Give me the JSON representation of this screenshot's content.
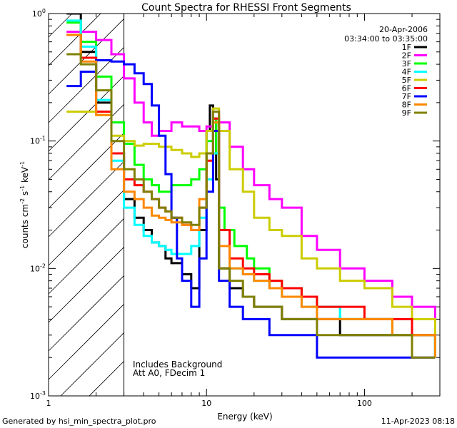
{
  "chart_data": {
    "type": "line",
    "title": "Count Spectra for RHESSI Front Segments",
    "xlabel": "Energy (keV)",
    "ylabel_parts": [
      "counts cm",
      "-2",
      " s",
      "-1",
      " keV",
      "-1"
    ],
    "xscale": "log",
    "yscale": "log",
    "xlim": [
      1,
      300
    ],
    "ylim": [
      0.001,
      1
    ],
    "xticks": [
      {
        "v": 1,
        "label": "1"
      },
      {
        "v": 10,
        "label": "10"
      },
      {
        "v": 100,
        "label": "100"
      }
    ],
    "yticks": [
      {
        "v": 0.001,
        "base": "10",
        "exp": "-3"
      },
      {
        "v": 0.01,
        "base": "10",
        "exp": "-2"
      },
      {
        "v": 0.1,
        "base": "10",
        "exp": "-1"
      },
      {
        "v": 1,
        "base": "10",
        "exp": "0"
      }
    ],
    "shaded_region_xlim": [
      1,
      3
    ],
    "date": "20-Apr-2006",
    "time_range": "03:34:00 to 03:35:00",
    "annotations": [
      "Includes Background",
      "Att A0, FDecim 1"
    ],
    "series": [
      {
        "name": "1F",
        "color": "#000000",
        "x": [
          1.3,
          1.6,
          2.0,
          2.5,
          3.0,
          3.5,
          4.0,
          4.5,
          5.0,
          5.5,
          6.0,
          7.0,
          8.0,
          9.0,
          10.0,
          10.5,
          11.0,
          11.5,
          12.0,
          14.0,
          17.0,
          20.0,
          25.0,
          30.0,
          40.0,
          50.0,
          70.0,
          100.0,
          150.0,
          200.0,
          280.0
        ],
        "y": [
          1.0,
          0.5,
          0.2,
          0.08,
          0.035,
          0.025,
          0.02,
          0.016,
          0.015,
          0.012,
          0.011,
          0.009,
          0.007,
          0.02,
          0.12,
          0.19,
          0.15,
          0.05,
          0.01,
          0.007,
          0.006,
          0.005,
          0.005,
          0.004,
          0.004,
          0.004,
          0.003,
          0.003,
          0.003,
          0.003,
          0.002
        ]
      },
      {
        "name": "2F",
        "color": "#ff00ff",
        "x": [
          1.3,
          1.6,
          2.0,
          2.5,
          3.0,
          3.5,
          4.0,
          4.5,
          5.0,
          6.0,
          7.0,
          8.0,
          9.0,
          10.0,
          11.0,
          12.0,
          14.0,
          17.0,
          20.0,
          25.0,
          30.0,
          40.0,
          50.0,
          70.0,
          100.0,
          150.0,
          200.0,
          280.0
        ],
        "y": [
          0.72,
          0.72,
          0.62,
          0.48,
          0.31,
          0.2,
          0.14,
          0.11,
          0.12,
          0.14,
          0.13,
          0.13,
          0.12,
          0.13,
          0.17,
          0.14,
          0.09,
          0.06,
          0.045,
          0.035,
          0.03,
          0.018,
          0.014,
          0.01,
          0.008,
          0.006,
          0.005,
          0.004
        ]
      },
      {
        "name": "3F",
        "color": "#00ff00",
        "x": [
          1.3,
          1.6,
          2.0,
          2.5,
          3.0,
          3.5,
          4.0,
          4.5,
          5.0,
          5.5,
          6.0,
          7.0,
          8.0,
          9.0,
          10.0,
          11.0,
          11.5,
          12.0,
          13.0,
          15.0,
          18.0,
          20.0,
          25.0,
          30.0,
          40.0,
          50.0,
          70.0,
          100.0,
          150.0,
          200.0,
          280.0
        ],
        "y": [
          0.85,
          0.6,
          0.32,
          0.14,
          0.095,
          0.065,
          0.05,
          0.045,
          0.04,
          0.04,
          0.045,
          0.045,
          0.05,
          0.06,
          0.1,
          0.15,
          0.08,
          0.03,
          0.02,
          0.015,
          0.012,
          0.01,
          0.008,
          0.007,
          0.006,
          0.005,
          0.004,
          0.004,
          0.003,
          0.003,
          0.002
        ]
      },
      {
        "name": "4F",
        "color": "#00ffff",
        "x": [
          1.3,
          1.6,
          2.0,
          2.5,
          3.0,
          3.5,
          4.0,
          4.5,
          5.0,
          5.5,
          6.0,
          7.0,
          8.0,
          9.0,
          10.0,
          11.0,
          12.0,
          14.0,
          17.0,
          20.0,
          25.0,
          30.0,
          40.0,
          50.0,
          70.0,
          100.0,
          150.0,
          200.0,
          280.0
        ],
        "y": [
          0.88,
          0.55,
          0.21,
          0.07,
          0.03,
          0.022,
          0.018,
          0.016,
          0.015,
          0.014,
          0.013,
          0.013,
          0.015,
          0.025,
          0.05,
          0.08,
          0.02,
          0.01,
          0.009,
          0.008,
          0.007,
          0.006,
          0.005,
          0.005,
          0.004,
          0.004,
          0.003,
          0.003,
          0.002
        ]
      },
      {
        "name": "5F",
        "color": "#cccc00",
        "x": [
          1.3,
          1.6,
          2.0,
          2.5,
          3.0,
          3.5,
          4.0,
          5.0,
          6.0,
          7.0,
          8.0,
          9.0,
          10.0,
          11.0,
          12.0,
          14.0,
          17.0,
          20.0,
          25.0,
          30.0,
          40.0,
          50.0,
          70.0,
          100.0,
          150.0,
          200.0,
          280.0
        ],
        "y": [
          0.17,
          0.17,
          0.16,
          0.11,
          0.1,
          0.092,
          0.095,
          0.09,
          0.085,
          0.08,
          0.075,
          0.08,
          0.12,
          0.18,
          0.12,
          0.06,
          0.04,
          0.025,
          0.02,
          0.018,
          0.012,
          0.01,
          0.008,
          0.007,
          0.005,
          0.004,
          0.003
        ]
      },
      {
        "name": "6F",
        "color": "#ff0000",
        "x": [
          1.3,
          1.6,
          2.0,
          2.5,
          3.0,
          3.5,
          4.0,
          4.5,
          5.0,
          5.5,
          6.0,
          7.0,
          8.0,
          9.0,
          10.0,
          11.0,
          12.0,
          14.0,
          17.0,
          20.0,
          25.0,
          30.0,
          40.0,
          50.0,
          70.0,
          100.0,
          150.0,
          200.0,
          280.0
        ],
        "y": [
          0.68,
          0.45,
          0.17,
          0.08,
          0.05,
          0.045,
          0.04,
          0.035,
          0.03,
          0.028,
          0.025,
          0.022,
          0.02,
          0.03,
          0.07,
          0.15,
          0.02,
          0.012,
          0.01,
          0.009,
          0.008,
          0.007,
          0.006,
          0.005,
          0.005,
          0.004,
          0.004,
          0.003,
          0.003
        ]
      },
      {
        "name": "7F",
        "color": "#0000ff",
        "x": [
          1.3,
          1.6,
          2.0,
          2.5,
          3.0,
          3.5,
          4.0,
          4.5,
          5.0,
          5.5,
          6.0,
          6.5,
          7.0,
          8.0,
          9.0,
          10.0,
          11.0,
          12.0,
          14.0,
          17.0,
          20.0,
          25.0,
          30.0,
          40.0,
          50.0,
          70.0,
          100.0,
          150.0,
          200.0,
          280.0
        ],
        "y": [
          0.27,
          0.35,
          0.43,
          0.42,
          0.4,
          0.34,
          0.28,
          0.19,
          0.11,
          0.055,
          0.025,
          0.012,
          0.008,
          0.005,
          0.012,
          0.04,
          0.12,
          0.008,
          0.005,
          0.004,
          0.004,
          0.003,
          0.003,
          0.003,
          0.002,
          0.002,
          0.002,
          0.002,
          0.002,
          0.002
        ]
      },
      {
        "name": "8F",
        "color": "#ff8800",
        "x": [
          1.3,
          1.6,
          2.0,
          2.5,
          3.0,
          3.5,
          4.0,
          4.5,
          5.0,
          5.5,
          6.0,
          7.0,
          8.0,
          9.0,
          10.0,
          11.0,
          12.0,
          14.0,
          17.0,
          20.0,
          25.0,
          30.0,
          40.0,
          50.0,
          70.0,
          100.0,
          150.0,
          200.0,
          280.0
        ],
        "y": [
          0.68,
          0.42,
          0.16,
          0.06,
          0.04,
          0.035,
          0.03,
          0.026,
          0.025,
          0.024,
          0.023,
          0.022,
          0.02,
          0.035,
          0.08,
          0.14,
          0.015,
          0.01,
          0.009,
          0.008,
          0.007,
          0.006,
          0.005,
          0.004,
          0.004,
          0.004,
          0.003,
          0.003,
          0.002
        ]
      },
      {
        "name": "9F",
        "color": "#808000",
        "x": [
          1.3,
          1.6,
          2.0,
          2.5,
          3.0,
          3.5,
          4.0,
          4.5,
          5.0,
          5.5,
          6.0,
          7.0,
          8.0,
          9.0,
          10.0,
          11.0,
          12.0,
          14.0,
          17.0,
          20.0,
          25.0,
          30.0,
          40.0,
          50.0,
          70.0,
          100.0,
          150.0,
          200.0,
          280.0
        ],
        "y": [
          0.48,
          0.4,
          0.25,
          0.1,
          0.06,
          0.05,
          0.04,
          0.035,
          0.03,
          0.028,
          0.025,
          0.023,
          0.022,
          0.03,
          0.08,
          0.17,
          0.01,
          0.008,
          0.006,
          0.005,
          0.005,
          0.004,
          0.004,
          0.003,
          0.003,
          0.003,
          0.003,
          0.002,
          0.002
        ]
      }
    ]
  },
  "footer": {
    "generated_by": "Generated by hsi_min_spectra_plot.pro",
    "timestamp": "11-Apr-2023 08:18"
  }
}
